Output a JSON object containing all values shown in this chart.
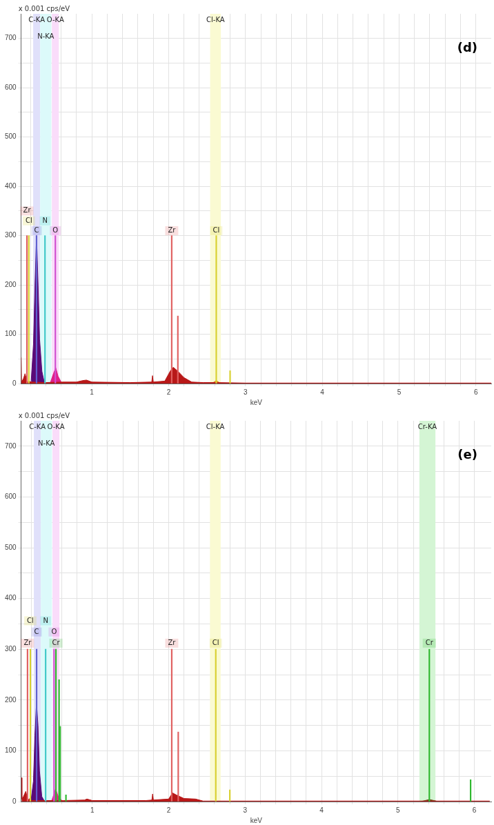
{
  "chart_data": [
    {
      "type": "area",
      "xlabel": "keV",
      "ylabel": "x 0.001 cps/eV",
      "xlim": [
        0.08,
        6.2
      ],
      "ylim": [
        0,
        750
      ],
      "xticks": [
        {
          "value": 0.2,
          "label": null
        },
        {
          "value": 0.4,
          "label": null
        },
        {
          "value": 0.6,
          "label": null
        },
        {
          "value": 0.8,
          "label": null
        },
        1,
        {
          "value": 1.2,
          "label": null
        },
        {
          "value": 1.4,
          "label": null
        },
        {
          "value": 1.6,
          "label": null
        },
        {
          "value": 1.8,
          "label": null
        },
        2,
        {
          "value": 2.2,
          "label": null
        },
        {
          "value": 2.4,
          "label": null
        },
        {
          "value": 2.6,
          "label": null
        },
        {
          "value": 2.8,
          "label": null
        },
        3,
        {
          "value": 3.2,
          "label": null
        },
        {
          "value": 3.4,
          "label": null
        },
        {
          "value": 3.6,
          "label": null
        },
        {
          "value": 3.8,
          "label": null
        },
        4,
        {
          "value": 4.2,
          "label": null
        },
        {
          "value": 4.4,
          "label": null
        },
        {
          "value": 4.6,
          "label": null
        },
        {
          "value": 4.8,
          "label": null
        },
        5,
        {
          "value": 5.2,
          "label": null
        },
        {
          "value": 5.4,
          "label": null
        },
        {
          "value": 5.6,
          "label": null
        },
        {
          "value": 5.8,
          "label": null
        },
        6
      ],
      "yticks": [
        0,
        {
          "value": 50,
          "label": null
        },
        100,
        {
          "value": 150,
          "label": null
        },
        200,
        {
          "value": 250,
          "label": null
        },
        300,
        {
          "value": 350,
          "label": null
        },
        400,
        {
          "value": 450,
          "label": null
        },
        500,
        {
          "value": 550,
          "label": null
        },
        600,
        {
          "value": 650,
          "label": null
        },
        700
      ],
      "grid": true,
      "legend": false,
      "series": [
        {
          "color": "#b81818",
          "x": [
            0.08,
            0.085,
            0.11,
            0.13,
            0.15,
            0.17,
            0.19,
            0.22,
            0.4,
            0.62,
            0.8,
            0.88,
            0.93,
            1.0,
            1.5,
            1.78,
            1.79,
            1.8,
            1.95,
            2.02,
            2.06,
            2.12,
            2.2,
            2.3,
            2.45,
            2.6,
            3.0,
            4.0,
            5.0,
            6.2
          ],
          "values": [
            53,
            3,
            10,
            20,
            8,
            2,
            4,
            3,
            2,
            3,
            3,
            6,
            7,
            3,
            2,
            3,
            16,
            3,
            5,
            25,
            33,
            25,
            12,
            3,
            2,
            2,
            1,
            1,
            1,
            1
          ]
        },
        {
          "color": "#5a0a78",
          "x": [
            0.21,
            0.24,
            0.26,
            0.28,
            0.3,
            0.32,
            0.35,
            0.38
          ],
          "values": [
            5,
            80,
            200,
            300,
            200,
            90,
            25,
            3
          ]
        },
        {
          "color": "#e0208a",
          "x": [
            0.46,
            0.5,
            0.53,
            0.56,
            0.6
          ],
          "values": [
            2,
            20,
            32,
            15,
            3
          ]
        },
        {
          "color": "#e08a20",
          "x": [
            2.57,
            2.62,
            2.67
          ],
          "values": [
            1,
            6,
            1
          ]
        },
        {
          "type": "bar",
          "color": "#e06060",
          "x": [
            0.155,
            2.04,
            2.12
          ],
          "values": [
            300,
            300,
            137
          ]
        },
        {
          "type": "bar",
          "color": "#d8d030",
          "x": [
            0.18,
            2.62,
            2.8
          ],
          "values": [
            300,
            300,
            26
          ]
        },
        {
          "type": "bar",
          "color": "#6060d0",
          "x": [
            0.28
          ],
          "values": [
            300
          ]
        },
        {
          "type": "bar",
          "color": "#40c8c8",
          "x": [
            0.39
          ],
          "values": [
            300
          ]
        },
        {
          "type": "bar",
          "color": "#d050d0",
          "x": [
            0.525
          ],
          "values": [
            300
          ]
        }
      ],
      "bands": [
        {
          "axis": "x",
          "from": 0.236,
          "to": 0.327,
          "label": "C-KA",
          "color": "#e0e0fa"
        },
        {
          "axis": "x",
          "from": 0.327,
          "to": 0.473,
          "label": "N-KA",
          "color": "#dcfafa"
        },
        {
          "axis": "x",
          "from": 0.48,
          "to": 0.57,
          "label": "O-KA",
          "color": "#fadcfa"
        },
        {
          "axis": "x",
          "from": 2.54,
          "to": 2.68,
          "label": "Cl-KA",
          "color": "#fafad2"
        }
      ],
      "annotations": [
        "(d)",
        {
          "text": "C",
          "x": 0.28,
          "y": 310
        },
        {
          "text": "O",
          "x": 0.525,
          "y": 310
        },
        {
          "text": "N",
          "x": 0.39,
          "y": 330
        },
        {
          "text": "Cl",
          "x": 0.18,
          "y": 330
        },
        {
          "text": "Zr",
          "x": 0.155,
          "y": 350
        },
        {
          "text": "Zr",
          "x": 2.04,
          "y": 310
        },
        {
          "text": "Cl",
          "x": 2.62,
          "y": 310
        }
      ]
    },
    {
      "type": "area",
      "xlabel": "keV",
      "ylabel": "x 0.001 cps/eV",
      "xlim": [
        0.07,
        6.22
      ],
      "ylim": [
        0,
        750
      ],
      "xticks": [
        {
          "value": 0.2,
          "label": null
        },
        {
          "value": 0.4,
          "label": null
        },
        {
          "value": 0.6,
          "label": null
        },
        {
          "value": 0.8,
          "label": null
        },
        1,
        {
          "value": 1.2,
          "label": null
        },
        {
          "value": 1.4,
          "label": null
        },
        {
          "value": 1.6,
          "label": null
        },
        {
          "value": 1.8,
          "label": null
        },
        2,
        {
          "value": 2.2,
          "label": null
        },
        {
          "value": 2.4,
          "label": null
        },
        {
          "value": 2.6,
          "label": null
        },
        {
          "value": 2.8,
          "label": null
        },
        3,
        {
          "value": 3.2,
          "label": null
        },
        {
          "value": 3.4,
          "label": null
        },
        {
          "value": 3.6,
          "label": null
        },
        {
          "value": 3.8,
          "label": null
        },
        4,
        {
          "value": 4.2,
          "label": null
        },
        {
          "value": 4.4,
          "label": null
        },
        {
          "value": 4.6,
          "label": null
        },
        {
          "value": 4.8,
          "label": null
        },
        5,
        {
          "value": 5.2,
          "label": null
        },
        {
          "value": 5.4,
          "label": null
        },
        {
          "value": 5.6,
          "label": null
        },
        {
          "value": 5.8,
          "label": null
        },
        6
      ],
      "yticks": [
        0,
        {
          "value": 50,
          "label": null
        },
        100,
        {
          "value": 150,
          "label": null
        },
        200,
        {
          "value": 250,
          "label": null
        },
        300,
        {
          "value": 350,
          "label": null
        },
        400,
        {
          "value": 450,
          "label": null
        },
        500,
        {
          "value": 550,
          "label": null
        },
        600,
        {
          "value": 650,
          "label": null
        },
        700
      ],
      "grid": true,
      "legend": false,
      "series": [
        {
          "color": "#b81818",
          "x": [
            0.075,
            0.08,
            0.1,
            0.13,
            0.15,
            0.17,
            0.19,
            0.2,
            0.4,
            0.62,
            0.9,
            0.93,
            1.0,
            1.7,
            1.78,
            1.79,
            1.8,
            2.0,
            2.05,
            2.1,
            2.2,
            2.35,
            2.45,
            3.0,
            4.0,
            5.3,
            6.2
          ],
          "values": [
            47,
            5,
            10,
            20,
            8,
            3,
            8,
            2,
            2,
            2,
            3,
            5,
            2,
            2,
            3,
            15,
            3,
            5,
            17,
            13,
            6,
            5,
            1,
            1,
            1,
            1,
            1
          ]
        },
        {
          "color": "#5a0a78",
          "x": [
            0.2,
            0.23,
            0.25,
            0.27,
            0.29,
            0.31,
            0.34,
            0.37
          ],
          "values": [
            3,
            40,
            130,
            195,
            150,
            60,
            10,
            2
          ]
        },
        {
          "color": "#e0208a",
          "x": [
            0.47,
            0.5,
            0.52,
            0.55,
            0.6
          ],
          "values": [
            2,
            15,
            25,
            12,
            2
          ]
        },
        {
          "color": "#6b4a1a",
          "x": [
            5.3,
            5.41,
            5.5
          ],
          "values": [
            0,
            4,
            1
          ]
        },
        {
          "type": "bar",
          "color": "#e06060",
          "x": [
            0.153,
            2.04,
            2.125
          ],
          "values": [
            300,
            300,
            137
          ]
        },
        {
          "type": "bar",
          "color": "#d8d030",
          "x": [
            0.19,
            2.616,
            2.8
          ],
          "values": [
            300,
            300,
            23
          ]
        },
        {
          "type": "bar",
          "color": "#6060d0",
          "x": [
            0.272
          ],
          "values": [
            300
          ]
        },
        {
          "type": "bar",
          "color": "#40c8c8",
          "x": [
            0.39
          ],
          "values": [
            300
          ]
        },
        {
          "type": "bar",
          "color": "#d050d0",
          "x": [
            0.5
          ],
          "values": [
            300
          ]
        },
        {
          "type": "bar",
          "color": "#30b830",
          "x": [
            0.525,
            0.566,
            0.58,
            0.656,
            5.41,
            5.95
          ],
          "values": [
            300,
            240,
            148,
            13,
            300,
            43
          ]
        }
      ],
      "bands": [
        {
          "axis": "x",
          "from": 0.236,
          "to": 0.327,
          "label": "C-KA",
          "color": "#e0e0fa"
        },
        {
          "axis": "x",
          "from": 0.327,
          "to": 0.473,
          "label": "N-KA",
          "color": "#dcfafa"
        },
        {
          "axis": "x",
          "from": 0.48,
          "to": 0.57,
          "label": "O-KA",
          "color": "#fadcfa"
        },
        {
          "axis": "x",
          "from": 2.54,
          "to": 2.68,
          "label": "Cl-KA",
          "color": "#fafad2"
        },
        {
          "axis": "x",
          "from": 5.28,
          "to": 5.49,
          "label": "Cr-KA",
          "color": "#d4f5d4"
        }
      ],
      "annotations": [
        "(e)",
        {
          "text": "Zr",
          "x": 0.153,
          "y": 312
        },
        {
          "text": "Cr",
          "x": 0.525,
          "y": 312
        },
        {
          "text": "C",
          "x": 0.272,
          "y": 334
        },
        {
          "text": "O",
          "x": 0.5,
          "y": 334
        },
        {
          "text": "N",
          "x": 0.39,
          "y": 356
        },
        {
          "text": "Cl",
          "x": 0.19,
          "y": 356
        },
        {
          "text": "Zr",
          "x": 2.04,
          "y": 312
        },
        {
          "text": "Cl",
          "x": 2.616,
          "y": 312
        },
        {
          "text": "Cr",
          "x": 5.41,
          "y": 312
        }
      ]
    }
  ]
}
